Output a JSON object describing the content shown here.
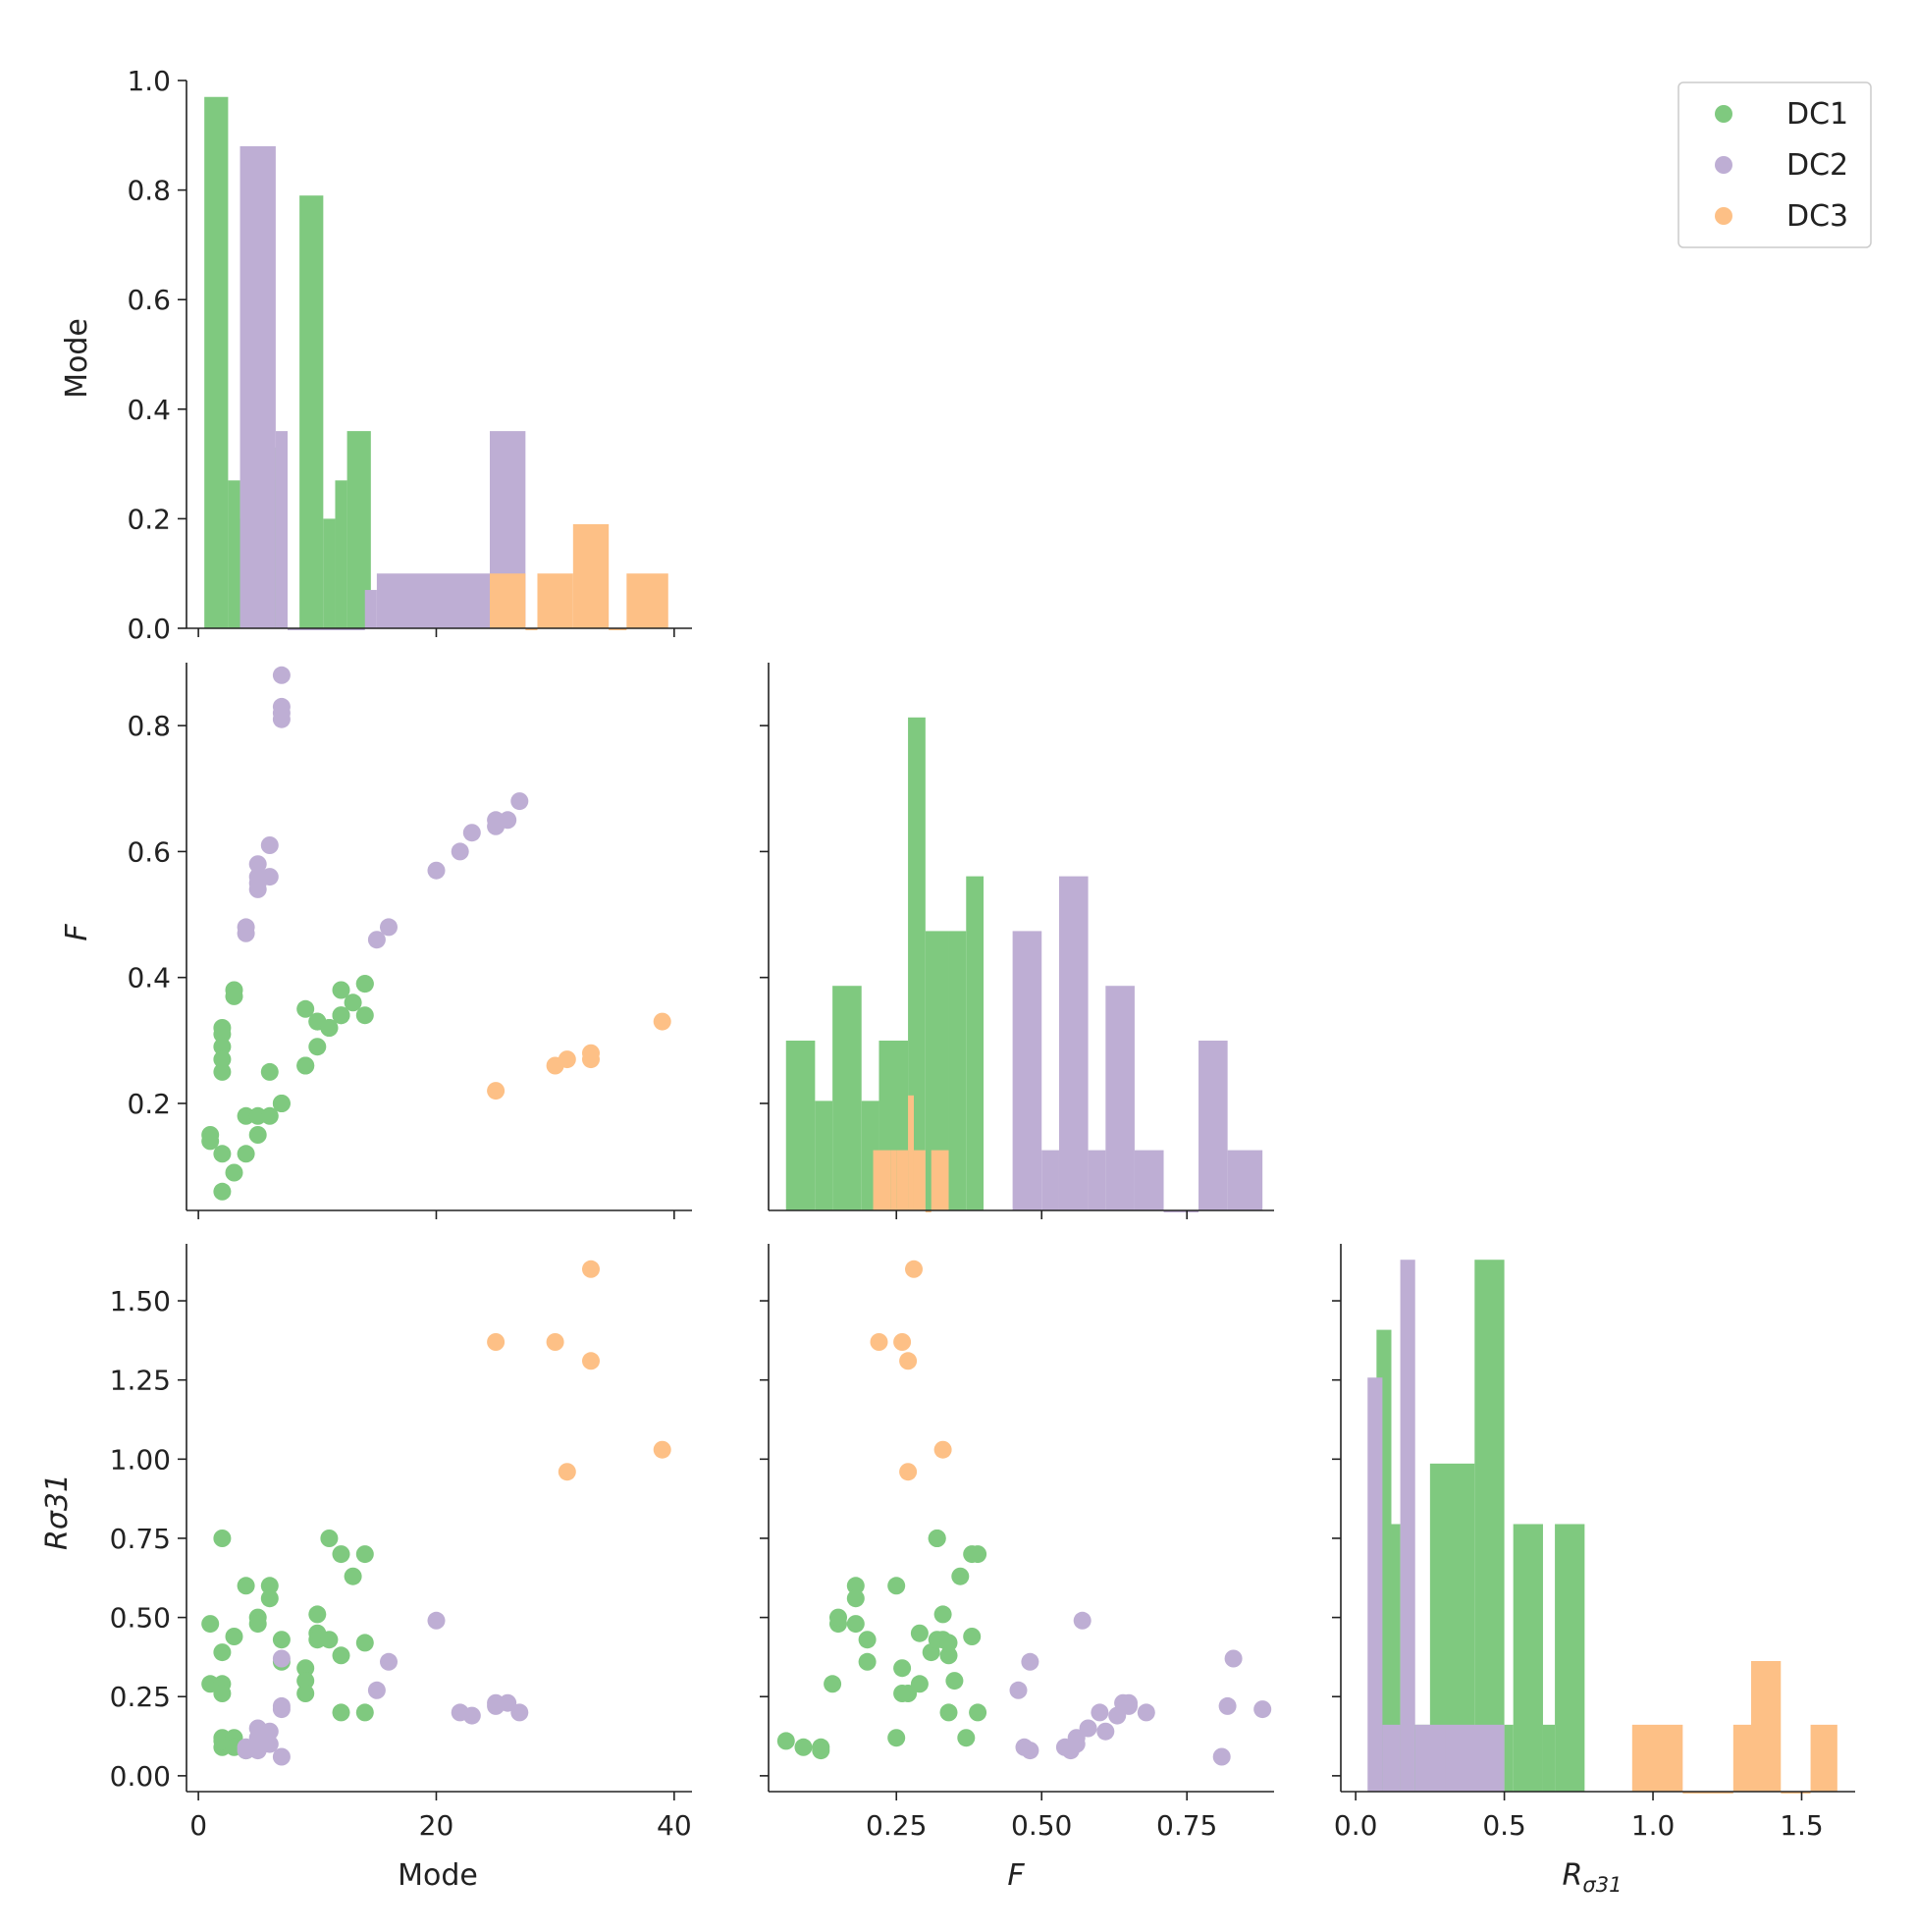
{
  "chart_data": {
    "type": "scatter",
    "title": "",
    "variables": [
      "Mode",
      "F",
      "Rσ31"
    ],
    "axis_labels": {
      "Mode": "Mode",
      "F": "F",
      "R_main": "R",
      "R_sub": "σ31",
      "R_left": "Rσ31"
    },
    "colors": {
      "DC1": "#7fc97f",
      "DC2": "#beaed4",
      "DC3": "#fdc086"
    },
    "legend": {
      "position": "top-right",
      "entries": [
        "DC1",
        "DC2",
        "DC3"
      ]
    },
    "ranges": {
      "Mode": [
        -1,
        41.5
      ],
      "F": [
        0.03,
        0.9
      ],
      "R": [
        -0.05,
        1.68
      ],
      "density": [
        0,
        1.0
      ]
    },
    "ticks": {
      "density": [
        "0.0",
        "0.2",
        "0.4",
        "0.6",
        "0.8",
        "1.0"
      ],
      "Mode": [
        "0",
        "20",
        "40"
      ],
      "F_y": [
        "0.2",
        "0.4",
        "0.6",
        "0.8"
      ],
      "F_x": [
        "0.25",
        "0.50",
        "0.75"
      ],
      "R_y": [
        "0.00",
        "0.25",
        "0.50",
        "0.75",
        "1.00",
        "1.25",
        "1.50"
      ],
      "R_x": [
        "0.0",
        "0.5",
        "1.0",
        "1.5"
      ]
    },
    "series": [
      {
        "name": "DC1",
        "points": [
          [
            1,
            0.15,
            0.48
          ],
          [
            1,
            0.14,
            0.29
          ],
          [
            2,
            0.32,
            0.75
          ],
          [
            2,
            0.31,
            0.39
          ],
          [
            2,
            0.29,
            0.29
          ],
          [
            2,
            0.27,
            0.26
          ],
          [
            2,
            0.25,
            0.12
          ],
          [
            2,
            0.12,
            0.09
          ],
          [
            2,
            0.06,
            0.11
          ],
          [
            3,
            0.38,
            0.44
          ],
          [
            3,
            0.37,
            0.12
          ],
          [
            3,
            0.09,
            0.09
          ],
          [
            4,
            0.18,
            0.6
          ],
          [
            4,
            0.12,
            0.08
          ],
          [
            5,
            0.15,
            0.5
          ],
          [
            5,
            0.18,
            0.48
          ],
          [
            6,
            0.25,
            0.6
          ],
          [
            6,
            0.18,
            0.56
          ],
          [
            7,
            0.2,
            0.43
          ],
          [
            7,
            0.2,
            0.36
          ],
          [
            9,
            0.26,
            0.34
          ],
          [
            9,
            0.35,
            0.3
          ],
          [
            9,
            0.26,
            0.26
          ],
          [
            10,
            0.33,
            0.51
          ],
          [
            10,
            0.29,
            0.45
          ],
          [
            10,
            0.33,
            0.43
          ],
          [
            11,
            0.32,
            0.75
          ],
          [
            11,
            0.32,
            0.43
          ],
          [
            12,
            0.38,
            0.7
          ],
          [
            12,
            0.34,
            0.38
          ],
          [
            12,
            0.34,
            0.2
          ],
          [
            13,
            0.36,
            0.63
          ],
          [
            14,
            0.39,
            0.7
          ],
          [
            14,
            0.34,
            0.42
          ],
          [
            14,
            0.39,
            0.2
          ]
        ],
        "hist_mode": [
          [
            0.5,
            2.5,
            0.97
          ],
          [
            2.5,
            3.5,
            0.27
          ],
          [
            3.5,
            4.5,
            0.2
          ],
          [
            4.5,
            5.5,
            0.36
          ],
          [
            5.5,
            6.5,
            0.33
          ],
          [
            6.5,
            7.5,
            0.27
          ],
          [
            7.5,
            8.5,
            0.0
          ],
          [
            8.5,
            10.5,
            0.79
          ],
          [
            10.5,
            11.5,
            0.2
          ],
          [
            11.5,
            12.5,
            0.27
          ],
          [
            12.5,
            14.5,
            0.36
          ]
        ],
        "hist_f": [
          [
            0.06,
            0.11,
            0.31
          ],
          [
            0.11,
            0.14,
            0.2
          ],
          [
            0.14,
            0.19,
            0.41
          ],
          [
            0.19,
            0.22,
            0.2
          ],
          [
            0.22,
            0.27,
            0.31
          ],
          [
            0.27,
            0.3,
            0.9
          ],
          [
            0.3,
            0.34,
            0.51
          ],
          [
            0.34,
            0.37,
            0.51
          ],
          [
            0.37,
            0.4,
            0.61
          ]
        ],
        "hist_r": [
          [
            0.07,
            0.12,
            1.45
          ],
          [
            0.12,
            0.15,
            0.84
          ],
          [
            0.15,
            0.25,
            0.21
          ],
          [
            0.25,
            0.4,
            1.03
          ],
          [
            0.4,
            0.5,
            1.67
          ],
          [
            0.5,
            0.53,
            0.21
          ],
          [
            0.53,
            0.63,
            0.84
          ],
          [
            0.63,
            0.67,
            0.21
          ],
          [
            0.67,
            0.77,
            0.84
          ]
        ]
      },
      {
        "name": "DC2",
        "points": [
          [
            4,
            0.48,
            0.08
          ],
          [
            4,
            0.47,
            0.09
          ],
          [
            5,
            0.58,
            0.15
          ],
          [
            5,
            0.56,
            0.12
          ],
          [
            5,
            0.55,
            0.08
          ],
          [
            5,
            0.54,
            0.09
          ],
          [
            6,
            0.61,
            0.14
          ],
          [
            6,
            0.56,
            0.1
          ],
          [
            7,
            0.88,
            0.21
          ],
          [
            7,
            0.83,
            0.37
          ],
          [
            7,
            0.82,
            0.22
          ],
          [
            7,
            0.81,
            0.06
          ],
          [
            15,
            0.46,
            0.27
          ],
          [
            16,
            0.48,
            0.36
          ],
          [
            20,
            0.57,
            0.49
          ],
          [
            22,
            0.6,
            0.2
          ],
          [
            23,
            0.63,
            0.19
          ],
          [
            25,
            0.65,
            0.22
          ],
          [
            25,
            0.64,
            0.23
          ],
          [
            26,
            0.65,
            0.23
          ],
          [
            27,
            0.68,
            0.2
          ]
        ],
        "hist_mode": [
          [
            3.5,
            6.5,
            0.88
          ],
          [
            6.5,
            7.5,
            0.36
          ],
          [
            7.5,
            14,
            0.0
          ],
          [
            14,
            15,
            0.07
          ],
          [
            15,
            24.5,
            0.1
          ],
          [
            24.5,
            27.5,
            0.36
          ]
        ],
        "hist_f": [
          [
            0.45,
            0.5,
            0.51
          ],
          [
            0.5,
            0.53,
            0.11
          ],
          [
            0.53,
            0.58,
            0.61
          ],
          [
            0.58,
            0.61,
            0.11
          ],
          [
            0.61,
            0.66,
            0.41
          ],
          [
            0.66,
            0.71,
            0.11
          ],
          [
            0.71,
            0.77,
            0.0
          ],
          [
            0.77,
            0.82,
            0.31
          ],
          [
            0.82,
            0.88,
            0.11
          ]
        ],
        "hist_r": [
          [
            0.04,
            0.09,
            1.3
          ],
          [
            0.09,
            0.15,
            0.21
          ],
          [
            0.15,
            0.2,
            1.67
          ],
          [
            0.2,
            0.3,
            0.21
          ],
          [
            0.3,
            0.5,
            0.21
          ]
        ]
      },
      {
        "name": "DC3",
        "points": [
          [
            25,
            0.22,
            1.37
          ],
          [
            30,
            0.26,
            1.37
          ],
          [
            31,
            0.27,
            0.96
          ],
          [
            33,
            0.28,
            1.6
          ],
          [
            33,
            0.27,
            1.31
          ],
          [
            39,
            0.33,
            1.03
          ]
        ],
        "hist_mode": [
          [
            24.5,
            27.5,
            0.1
          ],
          [
            27.5,
            28.5,
            0.0
          ],
          [
            28.5,
            31.5,
            0.1
          ],
          [
            31.5,
            34.5,
            0.19
          ],
          [
            34.5,
            36,
            0.0
          ],
          [
            36,
            39.5,
            0.1
          ]
        ],
        "hist_f": [
          [
            0.21,
            0.24,
            0.11
          ],
          [
            0.24,
            0.25,
            0.11
          ],
          [
            0.25,
            0.27,
            0.11
          ],
          [
            0.27,
            0.28,
            0.21
          ],
          [
            0.28,
            0.3,
            0.11
          ],
          [
            0.3,
            0.31,
            0.0
          ],
          [
            0.31,
            0.34,
            0.11
          ]
        ],
        "hist_r": [
          [
            0.93,
            1.1,
            0.21
          ],
          [
            1.1,
            1.27,
            0.0
          ],
          [
            1.27,
            1.33,
            0.21
          ],
          [
            1.33,
            1.43,
            0.41
          ],
          [
            1.43,
            1.53,
            0.0
          ],
          [
            1.53,
            1.62,
            0.21
          ]
        ]
      }
    ]
  }
}
